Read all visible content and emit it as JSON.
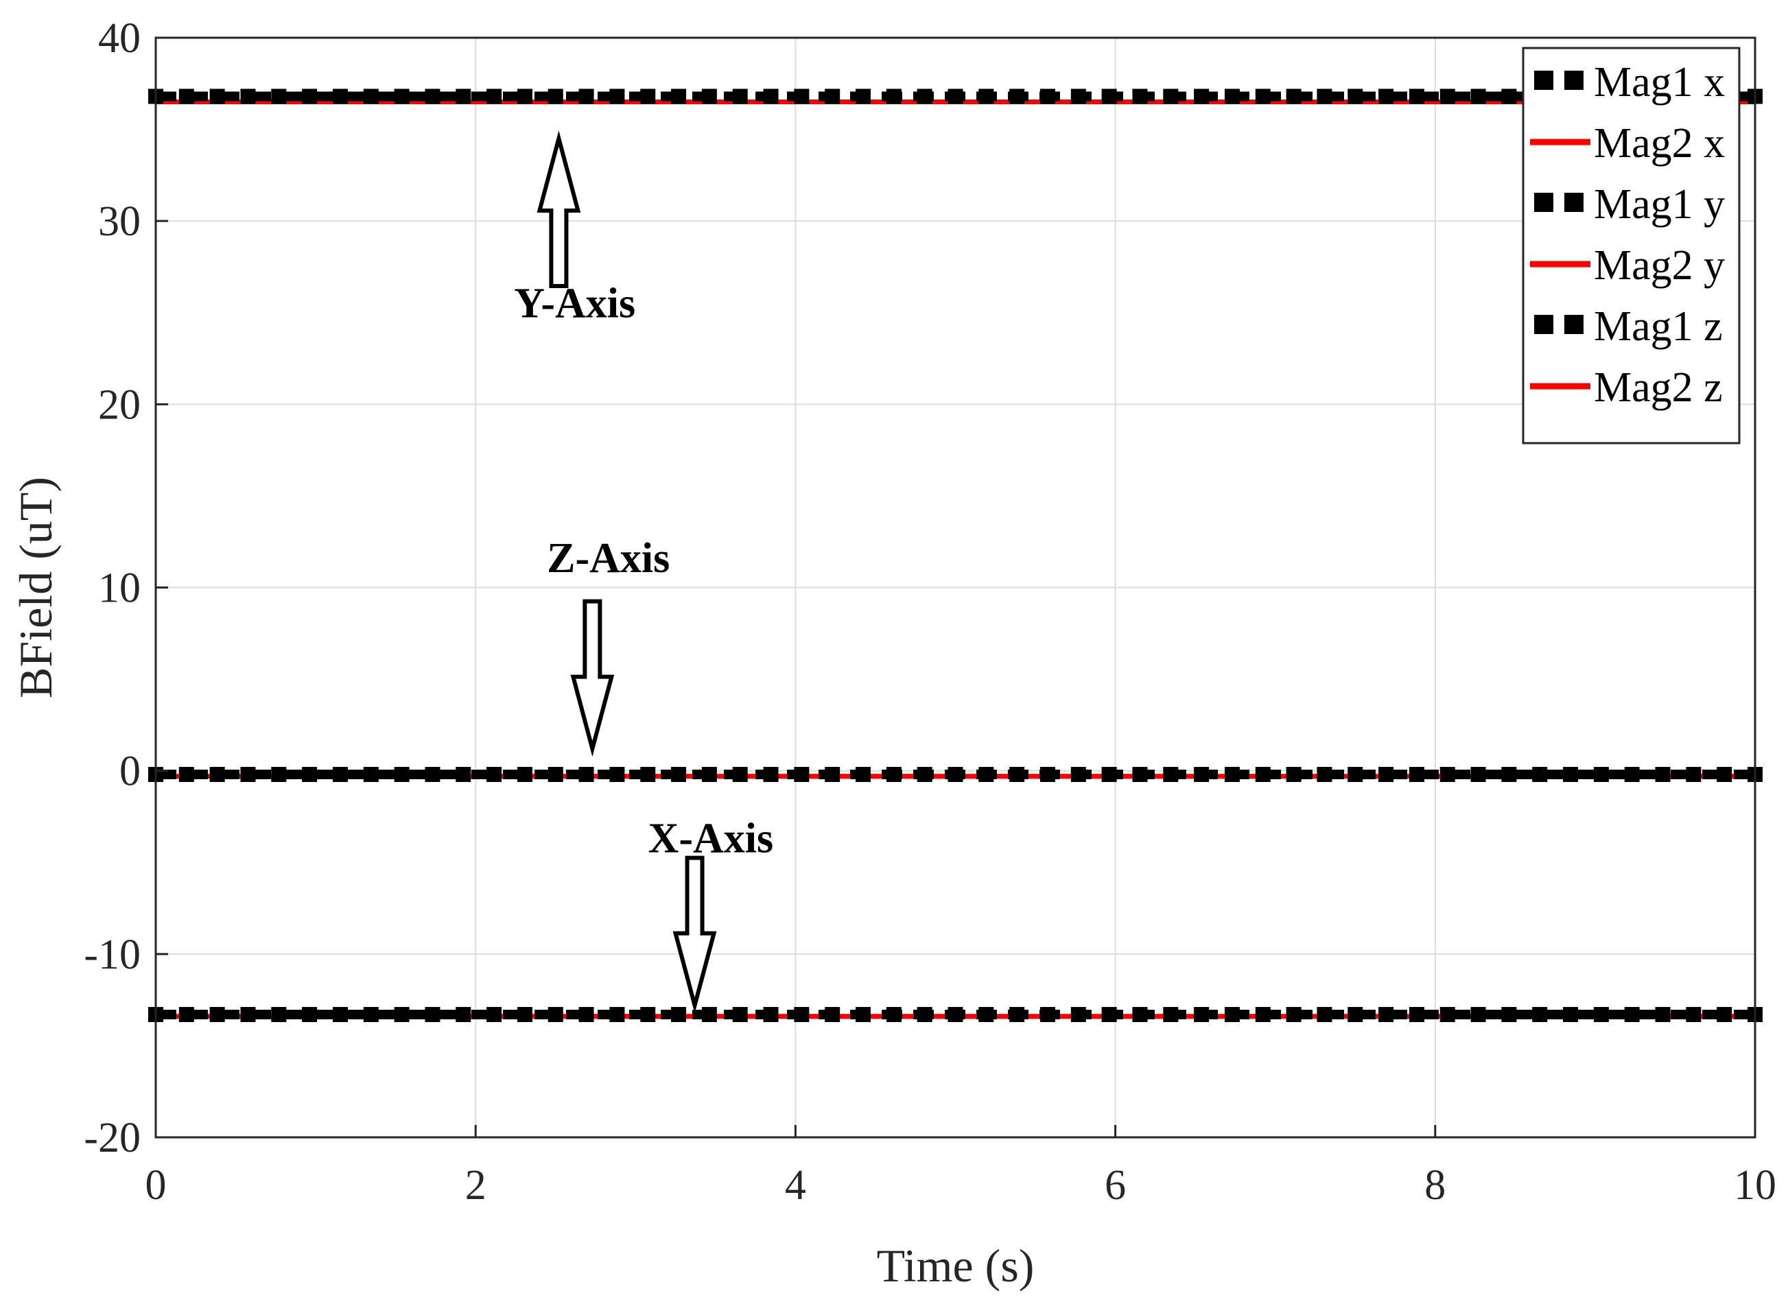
{
  "chart_data": {
    "type": "line",
    "title": "",
    "xlabel": "Time (s)",
    "ylabel": "BField (uT)",
    "xlim": [
      0,
      10
    ],
    "ylim": [
      -20,
      40
    ],
    "x_ticks": [
      "0",
      "2",
      "4",
      "6",
      "8",
      "10"
    ],
    "y_ticks": [
      "-20",
      "-10",
      "0",
      "10",
      "20",
      "30",
      "40"
    ],
    "grid": true,
    "legend_position": "top-right",
    "x": [
      0,
      10
    ],
    "series": [
      {
        "name": "Mag1 x",
        "values": [
          -13.3,
          -13.3
        ],
        "color": "#000000",
        "style": "dashed-square-markers"
      },
      {
        "name": "Mag2 x",
        "values": [
          -13.4,
          -13.4
        ],
        "color": "#ff0000",
        "style": "solid"
      },
      {
        "name": "Mag1 y",
        "values": [
          36.8,
          36.8
        ],
        "color": "#000000",
        "style": "dashed-square-markers"
      },
      {
        "name": "Mag2 y",
        "values": [
          36.5,
          36.5
        ],
        "color": "#ff0000",
        "style": "solid"
      },
      {
        "name": "Mag1 z",
        "values": [
          -0.2,
          -0.2
        ],
        "color": "#000000",
        "style": "dashed-square-markers"
      },
      {
        "name": "Mag2 z",
        "values": [
          -0.3,
          -0.3
        ],
        "color": "#ff0000",
        "style": "solid"
      }
    ],
    "annotations": [
      {
        "text": "Y-Axis",
        "x": 2.62,
        "y": 25.5,
        "arrow_tip": [
          2.52,
          34.5
        ],
        "arrow_direction": "up"
      },
      {
        "text": "Z-Axis",
        "x": 2.83,
        "y": 11.6,
        "arrow_tip": [
          2.73,
          1.2
        ],
        "arrow_direction": "down"
      },
      {
        "text": "X-Axis",
        "x": 3.47,
        "y": -3.7,
        "arrow_tip": [
          3.37,
          -12.8
        ],
        "arrow_direction": "down"
      }
    ]
  }
}
